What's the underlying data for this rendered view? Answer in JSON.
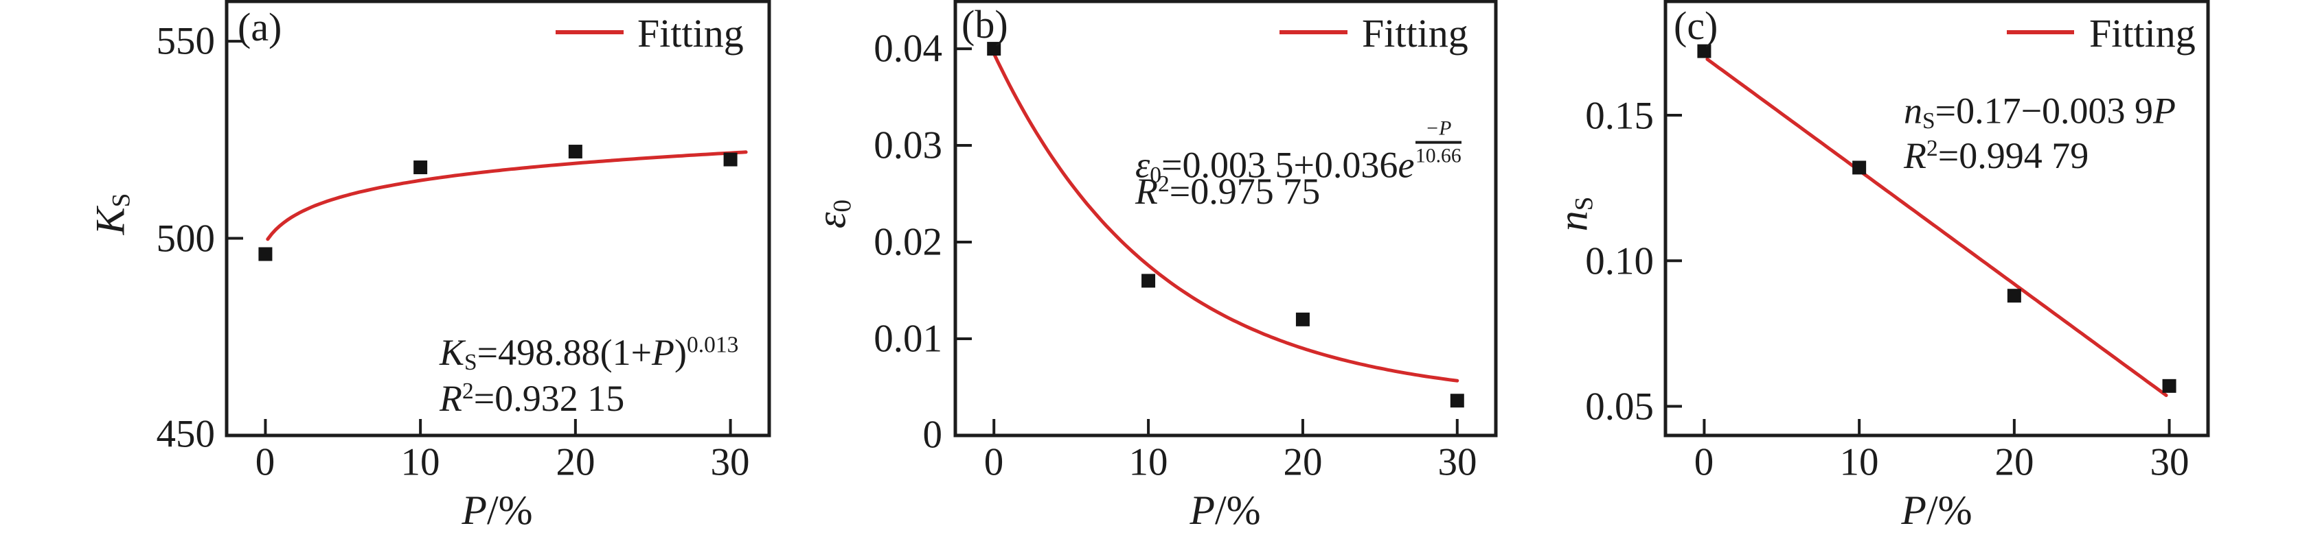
{
  "figure": {
    "background": "#ffffff",
    "ink_color": "#1c1c1c",
    "accent_red": "#d42a2a",
    "marker_color": "#141414",
    "legend_label": "Fitting"
  },
  "chart_data": [
    {
      "type": "scatter",
      "panel_label": "(a)",
      "title": "",
      "xlabel": "P/%",
      "ylabel": "K_S",
      "xlabel_var": "P",
      "xlabel_unit": "/%",
      "ylabel_var": "K",
      "ylabel_sub": "S",
      "legend": "Fitting",
      "legend_position": "top-right",
      "grid": false,
      "xlim": [
        -2.5,
        32.5
      ],
      "ylim": [
        450,
        560.1
      ],
      "xticks": [
        {
          "v": 0,
          "label": "0"
        },
        {
          "v": 10,
          "label": "10"
        },
        {
          "v": 20,
          "label": "20"
        },
        {
          "v": 30,
          "label": "30"
        }
      ],
      "yticks": [
        {
          "v": 450,
          "label": "450"
        },
        {
          "v": 500,
          "label": "500"
        },
        {
          "v": 550,
          "label": "550"
        }
      ],
      "x": [
        0,
        10,
        20,
        30
      ],
      "y": [
        496,
        518,
        522,
        520
      ],
      "fit": {
        "kind": "power",
        "a": 498.88,
        "b": 0.013,
        "domain": [
          0.15,
          31
        ],
        "equation_text": "K_S=498.88(1+P)^0.013",
        "r_squared_text": "R^2=0.932 15"
      },
      "annotation": {
        "lhs_var": "K",
        "lhs_sub": "S",
        "mid": "=498.88(1+",
        "var2": "P",
        "close": ")",
        "exponent": "0.013",
        "r2_var": "R",
        "r2_sup": "2",
        "r2_rest": "=0.932 15"
      }
    },
    {
      "type": "scatter",
      "panel_label": "(b)",
      "title": "",
      "xlabel": "P/%",
      "ylabel": "ε_0",
      "xlabel_var": "P",
      "xlabel_unit": "/%",
      "ylabel_var": "ε",
      "ylabel_sub": "0",
      "legend": "Fitting",
      "legend_position": "top-right",
      "grid": false,
      "xlim": [
        -2.5,
        32.5
      ],
      "ylim": [
        0,
        0.0449
      ],
      "xticks": [
        {
          "v": 0,
          "label": "0"
        },
        {
          "v": 10,
          "label": "10"
        },
        {
          "v": 20,
          "label": "20"
        },
        {
          "v": 30,
          "label": "30"
        }
      ],
      "yticks": [
        {
          "v": 0,
          "label": "0"
        },
        {
          "v": 0.01,
          "label": "0.01"
        },
        {
          "v": 0.02,
          "label": "0.02"
        },
        {
          "v": 0.03,
          "label": "0.03"
        },
        {
          "v": 0.04,
          "label": "0.04"
        }
      ],
      "x": [
        0,
        10,
        20,
        30
      ],
      "y": [
        0.04,
        0.016,
        0.012,
        0.0036
      ],
      "fit": {
        "kind": "exp",
        "c0": 0.0035,
        "amp": 0.036,
        "tau": 10.66,
        "domain": [
          0,
          30
        ],
        "equation_text": "ε_0=0.003 5+0.036e^(−P/10.66)",
        "r_squared_text": "R^2=0.975 75"
      },
      "annotation": {
        "lhs_var": "ε",
        "lhs_sub": "0",
        "mid": "=0.003 5+0.036",
        "e_var": "e",
        "frac_num": "−P",
        "frac_den": "10.66",
        "r2_var": "R",
        "r2_sup": "2",
        "r2_rest": "=0.975 75"
      }
    },
    {
      "type": "scatter",
      "panel_label": "(c)",
      "title": "",
      "xlabel": "P/%",
      "ylabel": "n_S",
      "xlabel_var": "P",
      "xlabel_unit": "/%",
      "ylabel_var": "n",
      "ylabel_sub": "S",
      "legend": "Fitting",
      "legend_position": "top-right",
      "grid": false,
      "xlim": [
        -2.5,
        32.5
      ],
      "ylim": [
        0.04,
        0.1891
      ],
      "xticks": [
        {
          "v": 0,
          "label": "0"
        },
        {
          "v": 10,
          "label": "10"
        },
        {
          "v": 20,
          "label": "20"
        },
        {
          "v": 30,
          "label": "30"
        }
      ],
      "yticks": [
        {
          "v": 0.05,
          "label": "0.05"
        },
        {
          "v": 0.1,
          "label": "0.10"
        },
        {
          "v": 0.15,
          "label": "0.15"
        }
      ],
      "x": [
        0,
        10,
        20,
        30
      ],
      "y": [
        0.172,
        0.132,
        0.088,
        0.057
      ],
      "fit": {
        "kind": "linear",
        "intercept": 0.17,
        "slope": -0.0039,
        "domain": [
          0.2,
          29.8
        ],
        "equation_text": "n_S=0.17−0.003 9P",
        "r_squared_text": "R^2=0.994 79"
      },
      "annotation": {
        "lhs_var": "n",
        "lhs_sub": "S",
        "mid": "=0.17−0.003 9",
        "var2": "P",
        "r2_var": "R",
        "r2_sup": "2",
        "r2_rest": "=0.994 79"
      }
    }
  ]
}
